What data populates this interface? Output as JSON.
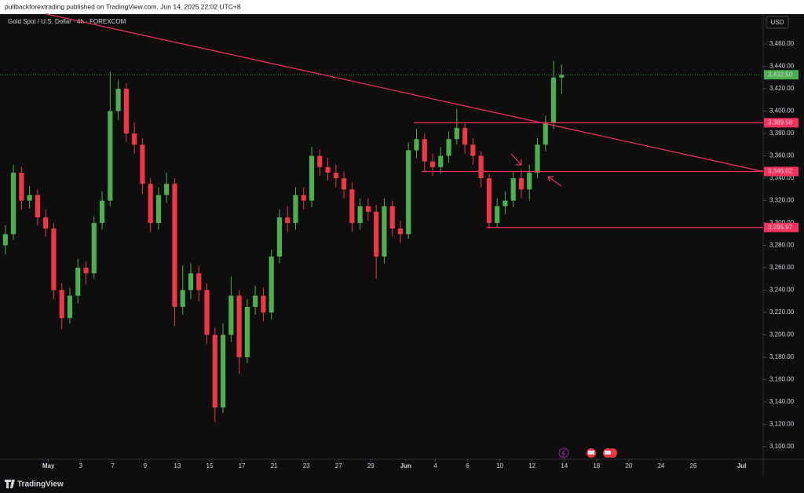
{
  "header": "pullbackforextrading published on TradingView.com, Jun 14, 2025 22:02 UTC+8",
  "footer": "TradingView",
  "chart_data": {
    "type": "candlestick",
    "title": "Gold Spot / U.S. Dollar · 4h · FOREXCOM",
    "currency": "USD",
    "up_color": "#4caf50",
    "down_color": "#f23645",
    "level_color": "#f7315e",
    "x": [
      -16,
      -13,
      -10,
      -7,
      -4,
      -1,
      2,
      5,
      8,
      11,
      14,
      17,
      20,
      23,
      26,
      29,
      32,
      35,
      38,
      41,
      44,
      47,
      50,
      53,
      56,
      59,
      62,
      65,
      68,
      71,
      74,
      77,
      80,
      83,
      86,
      89,
      92,
      95,
      98,
      101,
      104,
      107,
      110,
      113,
      116,
      119,
      122,
      125,
      128,
      131,
      134,
      137,
      140,
      143,
      146,
      149,
      152,
      155,
      158,
      161,
      164,
      167,
      170,
      173,
      176,
      179,
      182,
      185,
      188,
      191
    ],
    "open": [
      3280,
      3290,
      3345,
      3320,
      3325,
      3305,
      3295,
      3240,
      3215,
      3235,
      3260,
      3255,
      3300,
      3320,
      3400,
      3420,
      3380,
      3370,
      3335,
      3300,
      3325,
      3335,
      3225,
      3240,
      3255,
      3240,
      3200,
      3135,
      3200,
      3235,
      3180,
      3225,
      3235,
      3220,
      3270,
      3305,
      3300,
      3325,
      3320,
      3360,
      3350,
      3345,
      3340,
      3330,
      3300,
      3315,
      3310,
      3270,
      3315,
      3295,
      3290,
      3365,
      3375,
      3355,
      3350,
      3360,
      3375,
      3385,
      3370,
      3360,
      3340,
      3300,
      3315,
      3320,
      3340,
      3330,
      3345,
      3370,
      3390,
      3430
    ],
    "high": [
      3298,
      3352,
      3350,
      3333,
      3330,
      3312,
      3300,
      3246,
      3242,
      3268,
      3266,
      3306,
      3328,
      3435,
      3428,
      3425,
      3390,
      3376,
      3340,
      3332,
      3345,
      3340,
      3262,
      3264,
      3262,
      3246,
      3206,
      3210,
      3252,
      3240,
      3232,
      3244,
      3242,
      3276,
      3312,
      3315,
      3332,
      3332,
      3368,
      3366,
      3358,
      3352,
      3346,
      3336,
      3322,
      3322,
      3316,
      3322,
      3320,
      3302,
      3372,
      3384,
      3380,
      3362,
      3368,
      3382,
      3402,
      3390,
      3376,
      3364,
      3344,
      3322,
      3328,
      3346,
      3348,
      3352,
      3376,
      3396,
      3445,
      3442
    ],
    "low": [
      3272,
      3285,
      3312,
      3313,
      3298,
      3288,
      3232,
      3205,
      3210,
      3228,
      3245,
      3250,
      3294,
      3315,
      3392,
      3372,
      3362,
      3326,
      3292,
      3294,
      3318,
      3208,
      3218,
      3232,
      3230,
      3192,
      3122,
      3130,
      3194,
      3165,
      3175,
      3218,
      3212,
      3214,
      3264,
      3292,
      3294,
      3312,
      3314,
      3342,
      3338,
      3332,
      3322,
      3292,
      3294,
      3302,
      3250,
      3264,
      3288,
      3282,
      3286,
      3358,
      3346,
      3342,
      3344,
      3354,
      3370,
      3362,
      3352,
      3332,
      3295,
      3296,
      3308,
      3314,
      3322,
      3320,
      3340,
      3364,
      3384,
      3415
    ],
    "close": [
      3290,
      3345,
      3320,
      3325,
      3305,
      3295,
      3240,
      3215,
      3235,
      3260,
      3255,
      3300,
      3320,
      3400,
      3420,
      3380,
      3370,
      3335,
      3300,
      3325,
      3335,
      3225,
      3240,
      3255,
      3240,
      3200,
      3135,
      3200,
      3235,
      3180,
      3225,
      3235,
      3220,
      3270,
      3305,
      3300,
      3325,
      3320,
      3360,
      3350,
      3345,
      3340,
      3330,
      3300,
      3315,
      3310,
      3270,
      3315,
      3295,
      3290,
      3365,
      3375,
      3355,
      3350,
      3360,
      3375,
      3385,
      3370,
      3360,
      3340,
      3300,
      3315,
      3320,
      3340,
      3330,
      3345,
      3370,
      3390,
      3430,
      3432.5
    ],
    "xlim": [
      -18,
      266
    ],
    "ylim": [
      3088.8,
      3486.7
    ],
    "xticks": [
      {
        "value": 0,
        "label": "May"
      },
      {
        "value": 12,
        "label": "3"
      },
      {
        "value": 24,
        "label": "7"
      },
      {
        "value": 36,
        "label": "9"
      },
      {
        "value": 48,
        "label": "13"
      },
      {
        "value": 60,
        "label": "15"
      },
      {
        "value": 72,
        "label": "17"
      },
      {
        "value": 84,
        "label": "21"
      },
      {
        "value": 96,
        "label": "23"
      },
      {
        "value": 108,
        "label": "27"
      },
      {
        "value": 120,
        "label": "29"
      },
      {
        "value": 133,
        "label": "Jun"
      },
      {
        "value": 144,
        "label": "4"
      },
      {
        "value": 156,
        "label": "6"
      },
      {
        "value": 168,
        "label": "10"
      },
      {
        "value": 180,
        "label": "12"
      },
      {
        "value": 192,
        "label": "14"
      },
      {
        "value": 204,
        "label": "18"
      },
      {
        "value": 216,
        "label": "20"
      },
      {
        "value": 228,
        "label": "24"
      },
      {
        "value": 240,
        "label": "26"
      },
      {
        "value": 258,
        "label": "Jul"
      }
    ],
    "yticks": [
      {
        "value": 3100,
        "label": "3,100.00"
      },
      {
        "value": 3120,
        "label": "3,120.00"
      },
      {
        "value": 3140,
        "label": "3,140.00"
      },
      {
        "value": 3160,
        "label": "3,160.00"
      },
      {
        "value": 3180,
        "label": "3,180.00"
      },
      {
        "value": 3200,
        "label": "3,200.00"
      },
      {
        "value": 3220,
        "label": "3,220.00"
      },
      {
        "value": 3240,
        "label": "3,240.00"
      },
      {
        "value": 3260,
        "label": "3,260.00"
      },
      {
        "value": 3280,
        "label": "3,280.00"
      },
      {
        "value": 3300,
        "label": "3,300.00"
      },
      {
        "value": 3320,
        "label": "3,320.00"
      },
      {
        "value": 3340,
        "label": "3,340.00"
      },
      {
        "value": 3360,
        "label": "3,360.00"
      },
      {
        "value": 3380,
        "label": "3,380.00"
      },
      {
        "value": 3400,
        "label": "3,400.00"
      },
      {
        "value": 3420,
        "label": "3,420.00"
      },
      {
        "value": 3440,
        "label": "3,440.00"
      },
      {
        "value": 3460,
        "label": "3,460.00"
      }
    ],
    "levels": [
      {
        "value": 3389.58,
        "label": "3,389.58",
        "start": 136
      },
      {
        "value": 3346.02,
        "label": "3,346.02",
        "start": 139
      },
      {
        "value": 3295.97,
        "label": "3,295.97",
        "start": 163
      }
    ],
    "last_price": {
      "value": 3432.5,
      "label": "3,432.50",
      "color": "#4caf50"
    },
    "trendline": {
      "x": [
        -1,
        266
      ],
      "y": [
        3487,
        3346
      ]
    }
  }
}
